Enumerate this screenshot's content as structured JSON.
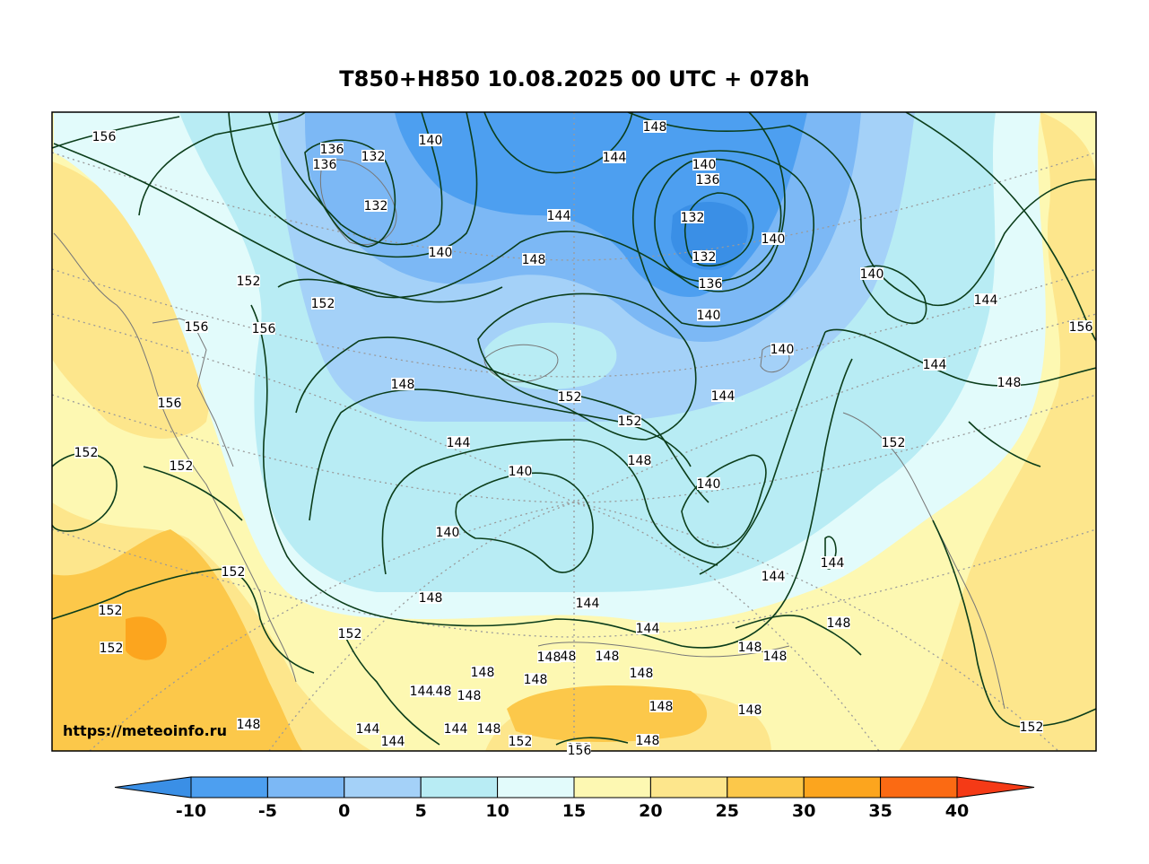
{
  "title": "T850+H850 10.08.2025 00 UTC + 078h",
  "source_url": "https://meteoinfo.ru",
  "colorbar": {
    "ticks": [
      "-10",
      "-5",
      "0",
      "5",
      "10",
      "15",
      "20",
      "25",
      "30",
      "35",
      "40"
    ],
    "colors": [
      "#3a8fe6",
      "#4d9ff0",
      "#7cb8f5",
      "#a4d1f8",
      "#b8ecf4",
      "#e2fbfb",
      "#fdf8b2",
      "#fde68c",
      "#fcc84a",
      "#fca51e",
      "#fb6a13",
      "#f53a16"
    ]
  },
  "contour_labels": [
    {
      "text": "156"
    },
    {
      "text": "136"
    },
    {
      "text": "136"
    },
    {
      "text": "132"
    },
    {
      "text": "132"
    },
    {
      "text": "140"
    },
    {
      "text": "148"
    },
    {
      "text": "144"
    },
    {
      "text": "140"
    },
    {
      "text": "136"
    },
    {
      "text": "132"
    },
    {
      "text": "132"
    },
    {
      "text": "136"
    },
    {
      "text": "140"
    },
    {
      "text": "140"
    },
    {
      "text": "144"
    },
    {
      "text": "140"
    },
    {
      "text": "148"
    },
    {
      "text": "152"
    },
    {
      "text": "152"
    },
    {
      "text": "156"
    },
    {
      "text": "156"
    },
    {
      "text": "140"
    },
    {
      "text": "144"
    },
    {
      "text": "156"
    },
    {
      "text": "140"
    },
    {
      "text": "144"
    },
    {
      "text": "148"
    },
    {
      "text": "148"
    },
    {
      "text": "152"
    },
    {
      "text": "152"
    },
    {
      "text": "144"
    },
    {
      "text": "156"
    },
    {
      "text": "152"
    },
    {
      "text": "144"
    },
    {
      "text": "148"
    },
    {
      "text": "140"
    },
    {
      "text": "152"
    },
    {
      "text": "140"
    },
    {
      "text": "140"
    },
    {
      "text": "152"
    },
    {
      "text": "144"
    },
    {
      "text": "144"
    },
    {
      "text": "148"
    },
    {
      "text": "144"
    },
    {
      "text": "152"
    },
    {
      "text": "152"
    },
    {
      "text": "152"
    },
    {
      "text": "152"
    },
    {
      "text": "148"
    },
    {
      "text": "148"
    },
    {
      "text": "148"
    },
    {
      "text": "148"
    },
    {
      "text": "148"
    },
    {
      "text": "148"
    },
    {
      "text": "148"
    },
    {
      "text": "148"
    },
    {
      "text": "148"
    },
    {
      "text": "148"
    },
    {
      "text": "148"
    },
    {
      "text": "148"
    },
    {
      "text": "152"
    },
    {
      "text": "148"
    },
    {
      "text": "144"
    },
    {
      "text": "148"
    },
    {
      "text": "152"
    },
    {
      "text": "148"
    },
    {
      "text": "144"
    },
    {
      "text": "144"
    },
    {
      "text": "144"
    },
    {
      "text": "152"
    },
    {
      "text": "156"
    },
    {
      "text": "148"
    },
    {
      "text": "144"
    }
  ]
}
